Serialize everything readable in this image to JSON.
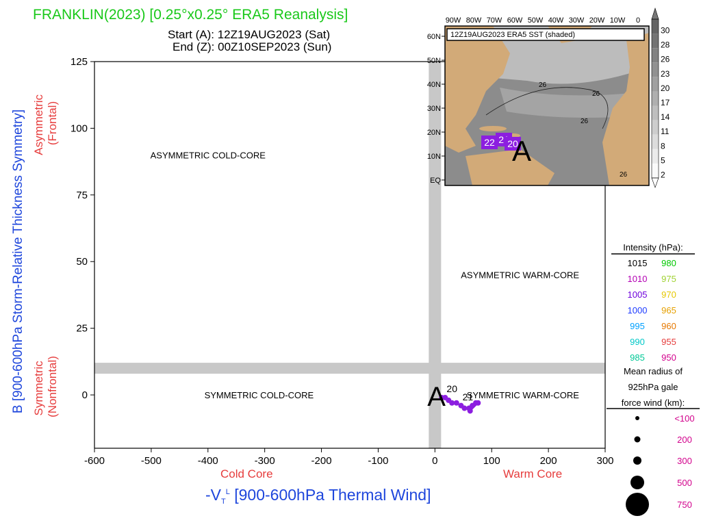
{
  "chart_data": {
    "type": "scatter",
    "title": "FRANKLIN(2023) [0.25°x0.25° ERA5 Reanalysis]",
    "start_label": "Start (A): 12Z19AUG2023 (Sat)",
    "end_label": "End (Z): 00Z10SEP2023 (Sun)",
    "xlabel": "-V",
    "xlabel_sub": "T",
    "xlabel_sup": "L",
    "xlabel_rest": " [900-600hPa Thermal Wind]",
    "ylabel": "B [900-600hPa Storm-Relative Thickness Symmetry]",
    "x_left_note": "Cold Core",
    "x_right_note": "Warm Core",
    "y_top_note": [
      "Asymmetric",
      "(Frontal)"
    ],
    "y_bottom_note": [
      "Symmetric",
      "(Nonfrontal)"
    ],
    "xlim": [
      -600,
      300
    ],
    "ylim": [
      -20,
      125
    ],
    "xticks": [
      -600,
      -500,
      -400,
      -300,
      -200,
      -100,
      0,
      100,
      200,
      300
    ],
    "yticks": [
      0,
      25,
      50,
      75,
      100,
      125
    ],
    "threshold_x": 0,
    "threshold_y": 10,
    "quadrants": [
      {
        "label": "ASYMMETRIC COLD-CORE",
        "x": -400,
        "y": 90
      },
      {
        "label": "ASYMMETRIC WARM-CORE",
        "x": 150,
        "y": 45
      },
      {
        "label": "SYMMETRIC COLD-CORE",
        "x": -310,
        "y": 0
      },
      {
        "label": "SYMMETRIC WARM-CORE",
        "x": 155,
        "y": 0
      }
    ],
    "track": {
      "start_marker": "A",
      "start": {
        "x": 10,
        "y": 0
      },
      "points": [
        {
          "x": 12,
          "y": -1
        },
        {
          "x": 18,
          "y": -1
        },
        {
          "x": 24,
          "y": -2
        },
        {
          "x": 30,
          "y": -3
        },
        {
          "x": 38,
          "y": -3
        },
        {
          "x": 46,
          "y": -4
        },
        {
          "x": 52,
          "y": -5
        },
        {
          "x": 60,
          "y": -5
        },
        {
          "x": 66,
          "y": -4
        },
        {
          "x": 72,
          "y": -3
        },
        {
          "x": 76,
          "y": -3
        },
        {
          "x": 62,
          "y": -6
        }
      ],
      "color": "#8c1ee0",
      "labels": [
        {
          "text": "20",
          "x": 30,
          "y": 1
        },
        {
          "text": "21",
          "x": 58,
          "y": -2
        }
      ]
    },
    "intensity_legend": {
      "title": "Intensity (hPa):",
      "items": [
        {
          "left": "1015",
          "left_color": "#000000",
          "right": "980",
          "right_color": "#00c800"
        },
        {
          "left": "1010",
          "left_color": "#b400b4",
          "right": "975",
          "right_color": "#a0d232"
        },
        {
          "left": "1005",
          "left_color": "#6e00dc",
          "right": "970",
          "right_color": "#e6c800"
        },
        {
          "left": "1000",
          "left_color": "#1e3cff",
          "right": "965",
          "right_color": "#e6a000"
        },
        {
          "left": "995",
          "left_color": "#00a0ff",
          "right": "960",
          "right_color": "#e67800"
        },
        {
          "left": "990",
          "left_color": "#00c8c8",
          "right": "955",
          "right_color": "#e63c3c"
        },
        {
          "left": "985",
          "left_color": "#00c896",
          "right": "950",
          "right_color": "#d2008c"
        }
      ]
    },
    "radius_legend": {
      "title": [
        "Mean radius of",
        "925hPa gale",
        "force wind (km):"
      ],
      "items": [
        "<100",
        "200",
        "300",
        "500",
        "750"
      ],
      "color": "#d2008c"
    },
    "inset_map": {
      "label": "12Z19AUG2023 ERA5 SST (shaded)",
      "lon_labels": [
        "90W",
        "80W",
        "70W",
        "60W",
        "50W",
        "40W",
        "30W",
        "20W",
        "10W",
        "0"
      ],
      "lat_labels": [
        "60N",
        "50N",
        "40N",
        "30N",
        "20N",
        "10N",
        "EQ"
      ],
      "contour_labels": [
        "26",
        "26",
        "26",
        "26"
      ],
      "track_labels": [
        "22",
        "21",
        "20"
      ],
      "start_marker": "A",
      "colorbar": [
        "30",
        "28",
        "26",
        "23",
        "20",
        "17",
        "14",
        "11",
        "8",
        "5",
        "2"
      ]
    },
    "colors": {
      "title": "#19c819",
      "note_red": "#e63c3c",
      "ylabel_blue": "#1e46dc",
      "xlabel_blue": "#1e46dc",
      "threshold_band": "#c8c8c8",
      "land": "#d2aa78",
      "track": "#8c1ee0"
    }
  }
}
